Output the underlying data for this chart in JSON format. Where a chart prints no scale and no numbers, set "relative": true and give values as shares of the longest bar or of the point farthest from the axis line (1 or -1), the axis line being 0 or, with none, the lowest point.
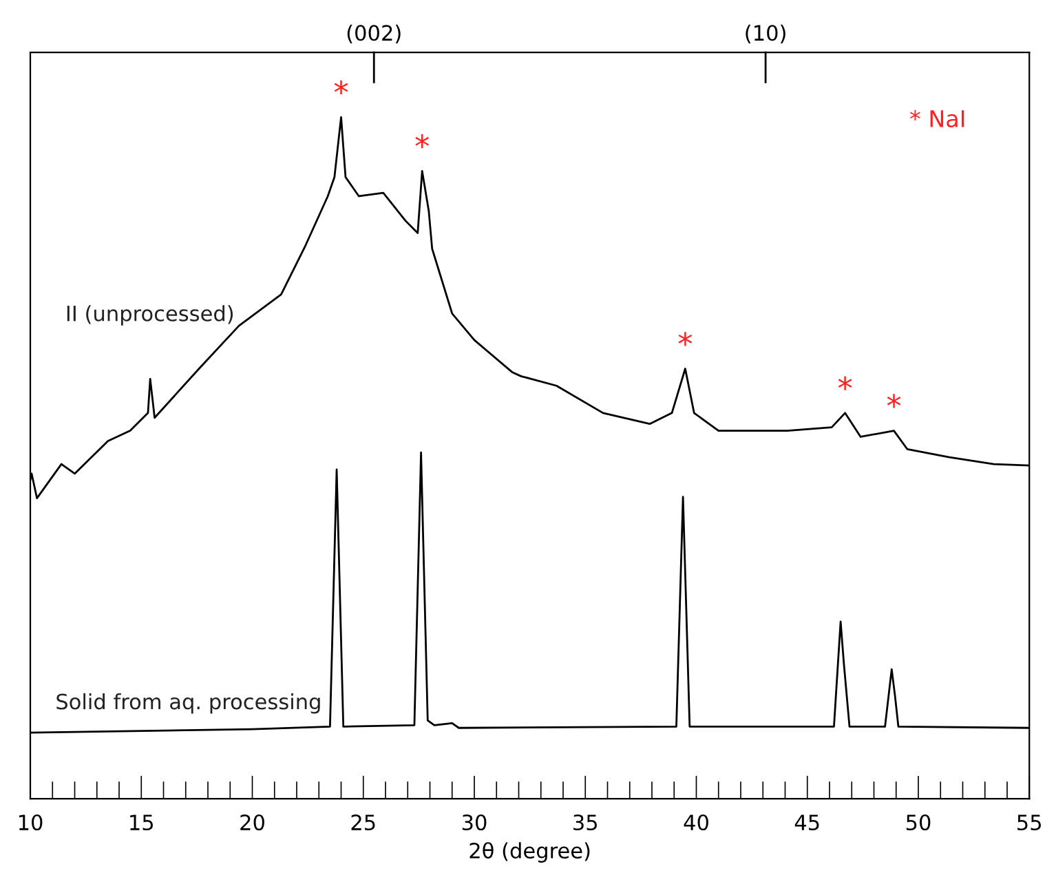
{
  "chart_data": {
    "type": "line",
    "relative": true,
    "xlabel": "2θ (degree)",
    "xlim": [
      10,
      55
    ],
    "xticks": [
      10,
      15,
      20,
      25,
      30,
      35,
      40,
      45,
      50,
      55
    ],
    "series": [
      {
        "name": "II (unprocessed)",
        "color": "#000000",
        "x": [
          10.0,
          10.06,
          10.3,
          11.4,
          12.0,
          13.5,
          14.5,
          15.3,
          15.4,
          15.6,
          17.6,
          19.4,
          21.3,
          22.4,
          23.4,
          23.7,
          24.0,
          24.2,
          24.8,
          25.9,
          26.9,
          27.45,
          27.65,
          27.95,
          28.1,
          29.0,
          30.0,
          31.7,
          32.1,
          33.7,
          35.8,
          37.9,
          38.9,
          39.5,
          39.9,
          41.0,
          44.1,
          46.1,
          46.7,
          47.4,
          48.9,
          49.5,
          51.4,
          53.4,
          55.0
        ],
        "values": [
          0.468,
          0.477,
          0.441,
          0.491,
          0.477,
          0.525,
          0.54,
          0.566,
          0.616,
          0.559,
          0.631,
          0.694,
          0.74,
          0.812,
          0.884,
          0.912,
          1.0,
          0.912,
          0.884,
          0.889,
          0.848,
          0.83,
          0.921,
          0.862,
          0.807,
          0.712,
          0.673,
          0.626,
          0.62,
          0.606,
          0.566,
          0.55,
          0.566,
          0.631,
          0.566,
          0.54,
          0.54,
          0.545,
          0.566,
          0.531,
          0.54,
          0.513,
          0.501,
          0.491,
          0.489
        ]
      },
      {
        "name": "Solid from aq. processing",
        "color": "#000000",
        "x": [
          10.0,
          20.0,
          23.5,
          23.8,
          24.1,
          27.3,
          27.6,
          27.9,
          28.2,
          29.0,
          29.3,
          39.1,
          39.4,
          39.7,
          46.2,
          46.5,
          46.65,
          46.9,
          48.5,
          48.8,
          48.95,
          49.1,
          55.0
        ],
        "values": [
          0.097,
          0.102,
          0.106,
          0.483,
          0.106,
          0.108,
          0.508,
          0.115,
          0.108,
          0.111,
          0.104,
          0.106,
          0.443,
          0.106,
          0.106,
          0.26,
          0.197,
          0.106,
          0.106,
          0.19,
          0.151,
          0.106,
          0.104
        ]
      }
    ],
    "annotations": [
      {
        "text": "*",
        "x": 24.0,
        "y": 1.0
      },
      {
        "text": "*",
        "x": 27.65,
        "y": 0.921
      },
      {
        "text": "*",
        "x": 39.5,
        "y": 0.631
      },
      {
        "text": "*",
        "x": 46.7,
        "y": 0.566
      },
      {
        "text": "*",
        "x": 48.9,
        "y": 0.54
      },
      "* NaI",
      "(002)",
      "(10)"
    ],
    "grid": false,
    "legend": false
  }
}
